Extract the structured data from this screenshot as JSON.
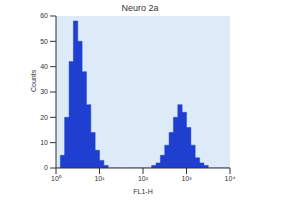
{
  "chart_data": {
    "type": "histogram",
    "title": "Neuro 2a",
    "x_label": "FL1-H",
    "y_label": "Counts",
    "bins": [
      1,
      1.26,
      1.58,
      2,
      2.51,
      3.16,
      3.98,
      5.01,
      6.31,
      7.94,
      10,
      12.6,
      15.8,
      20,
      25.1,
      31.6,
      39.8,
      50.1,
      63.1,
      79.4,
      100,
      126,
      158,
      200,
      251,
      316,
      398,
      501,
      631,
      794,
      1000,
      1260,
      1580,
      2000,
      2510,
      3160,
      3980,
      5010,
      6310,
      7940,
      10000
    ],
    "values": [
      0,
      5,
      20,
      42,
      58,
      50,
      38,
      25,
      14,
      7,
      3,
      1,
      0,
      0,
      0,
      0,
      0,
      0,
      0,
      0,
      0,
      0,
      1,
      2,
      5,
      9,
      14,
      20,
      25,
      22,
      16,
      9,
      4,
      2,
      1,
      0,
      0,
      0,
      0,
      0
    ],
    "color": "#1f3fd0",
    "log": "x",
    "xlim": [
      1,
      10000
    ],
    "xticks": [
      {
        "value": 1,
        "label": "10⁰"
      },
      {
        "value": 10,
        "label": "10¹"
      },
      {
        "value": 100,
        "label": "10²"
      },
      {
        "value": 1000,
        "label": "10³"
      },
      {
        "value": 10000,
        "label": "10⁴"
      }
    ],
    "ylim": [
      0,
      60
    ],
    "yticks": [
      0,
      10,
      20,
      30,
      40,
      50,
      60
    ],
    "grid": false
  }
}
